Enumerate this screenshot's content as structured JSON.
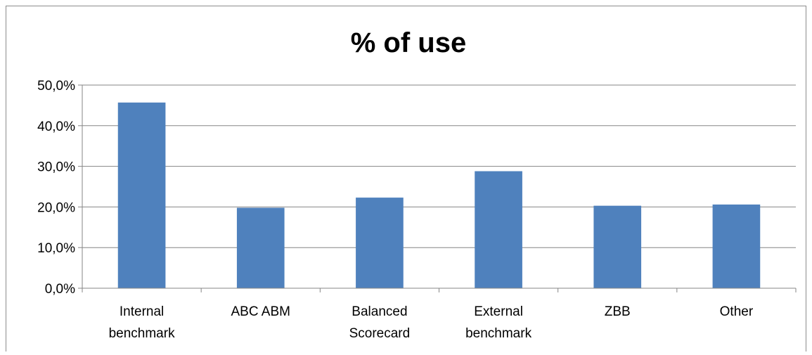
{
  "chart_data": {
    "type": "bar",
    "title": "% of use",
    "categories": [
      [
        "Internal",
        "benchmark"
      ],
      [
        "ABC ABM"
      ],
      [
        "Balanced",
        "Scorecard"
      ],
      [
        "External",
        "benchmark"
      ],
      [
        "ZBB"
      ],
      [
        "Other"
      ]
    ],
    "values": [
      45.7,
      19.8,
      22.3,
      28.8,
      20.3,
      20.6
    ],
    "y_ticks": [
      "0,0%",
      "10,0%",
      "20,0%",
      "30,0%",
      "40,0%",
      "50,0%"
    ],
    "ylim": [
      0,
      50
    ],
    "grid": true,
    "legend": "none",
    "bar_color": "#4F81BD",
    "grid_color": "#868686",
    "xlabel": "",
    "ylabel": ""
  }
}
